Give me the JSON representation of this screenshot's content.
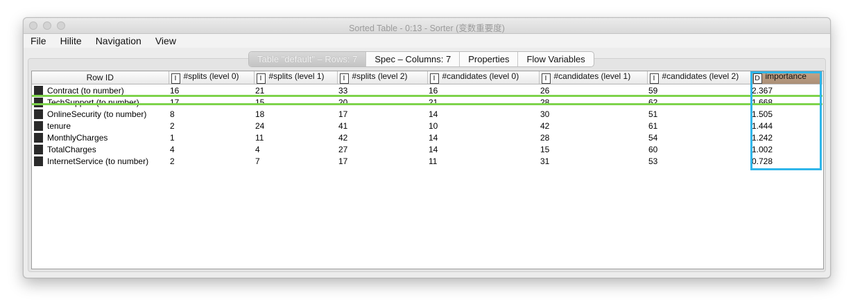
{
  "window": {
    "title": "Sorted Table - 0:13 - Sorter (变数重要度)"
  },
  "menu": [
    "File",
    "Hilite",
    "Navigation",
    "View"
  ],
  "tabs": [
    {
      "label": "Table \"default\" – Rows: 7",
      "active": true
    },
    {
      "label": "Spec – Columns: 7",
      "active": false
    },
    {
      "label": "Properties",
      "active": false
    },
    {
      "label": "Flow Variables",
      "active": false
    }
  ],
  "table": {
    "columns": [
      {
        "label": "Row ID",
        "type": ""
      },
      {
        "label": "#splits (level 0)",
        "type": "I"
      },
      {
        "label": "#splits (level 1)",
        "type": "I"
      },
      {
        "label": "#splits (level 2)",
        "type": "I"
      },
      {
        "label": "#candidates (level 0)",
        "type": "I"
      },
      {
        "label": "#candidates (level 1)",
        "type": "I"
      },
      {
        "label": "#candidates (level 2)",
        "type": "I"
      },
      {
        "label": "importance",
        "type": "D"
      }
    ],
    "rows": [
      [
        "Contract (to number)",
        "16",
        "21",
        "33",
        "16",
        "26",
        "59",
        "2.367"
      ],
      [
        "TechSupport (to number)",
        "17",
        "15",
        "20",
        "21",
        "28",
        "62",
        "1.668"
      ],
      [
        "OnlineSecurity (to number)",
        "8",
        "18",
        "17",
        "14",
        "30",
        "51",
        "1.505"
      ],
      [
        "tenure",
        "2",
        "24",
        "41",
        "10",
        "42",
        "61",
        "1.444"
      ],
      [
        "MonthlyCharges",
        "1",
        "11",
        "42",
        "14",
        "28",
        "54",
        "1.242"
      ],
      [
        "TotalCharges",
        "4",
        "4",
        "27",
        "14",
        "15",
        "60",
        "1.002"
      ],
      [
        "InternetService (to number)",
        "2",
        "7",
        "17",
        "11",
        "31",
        "53",
        "0.728"
      ]
    ]
  },
  "colors": {
    "highlight_row": "#7ed34b",
    "highlight_column": "#2fb6ea",
    "sorted_header": "#b89a80"
  }
}
